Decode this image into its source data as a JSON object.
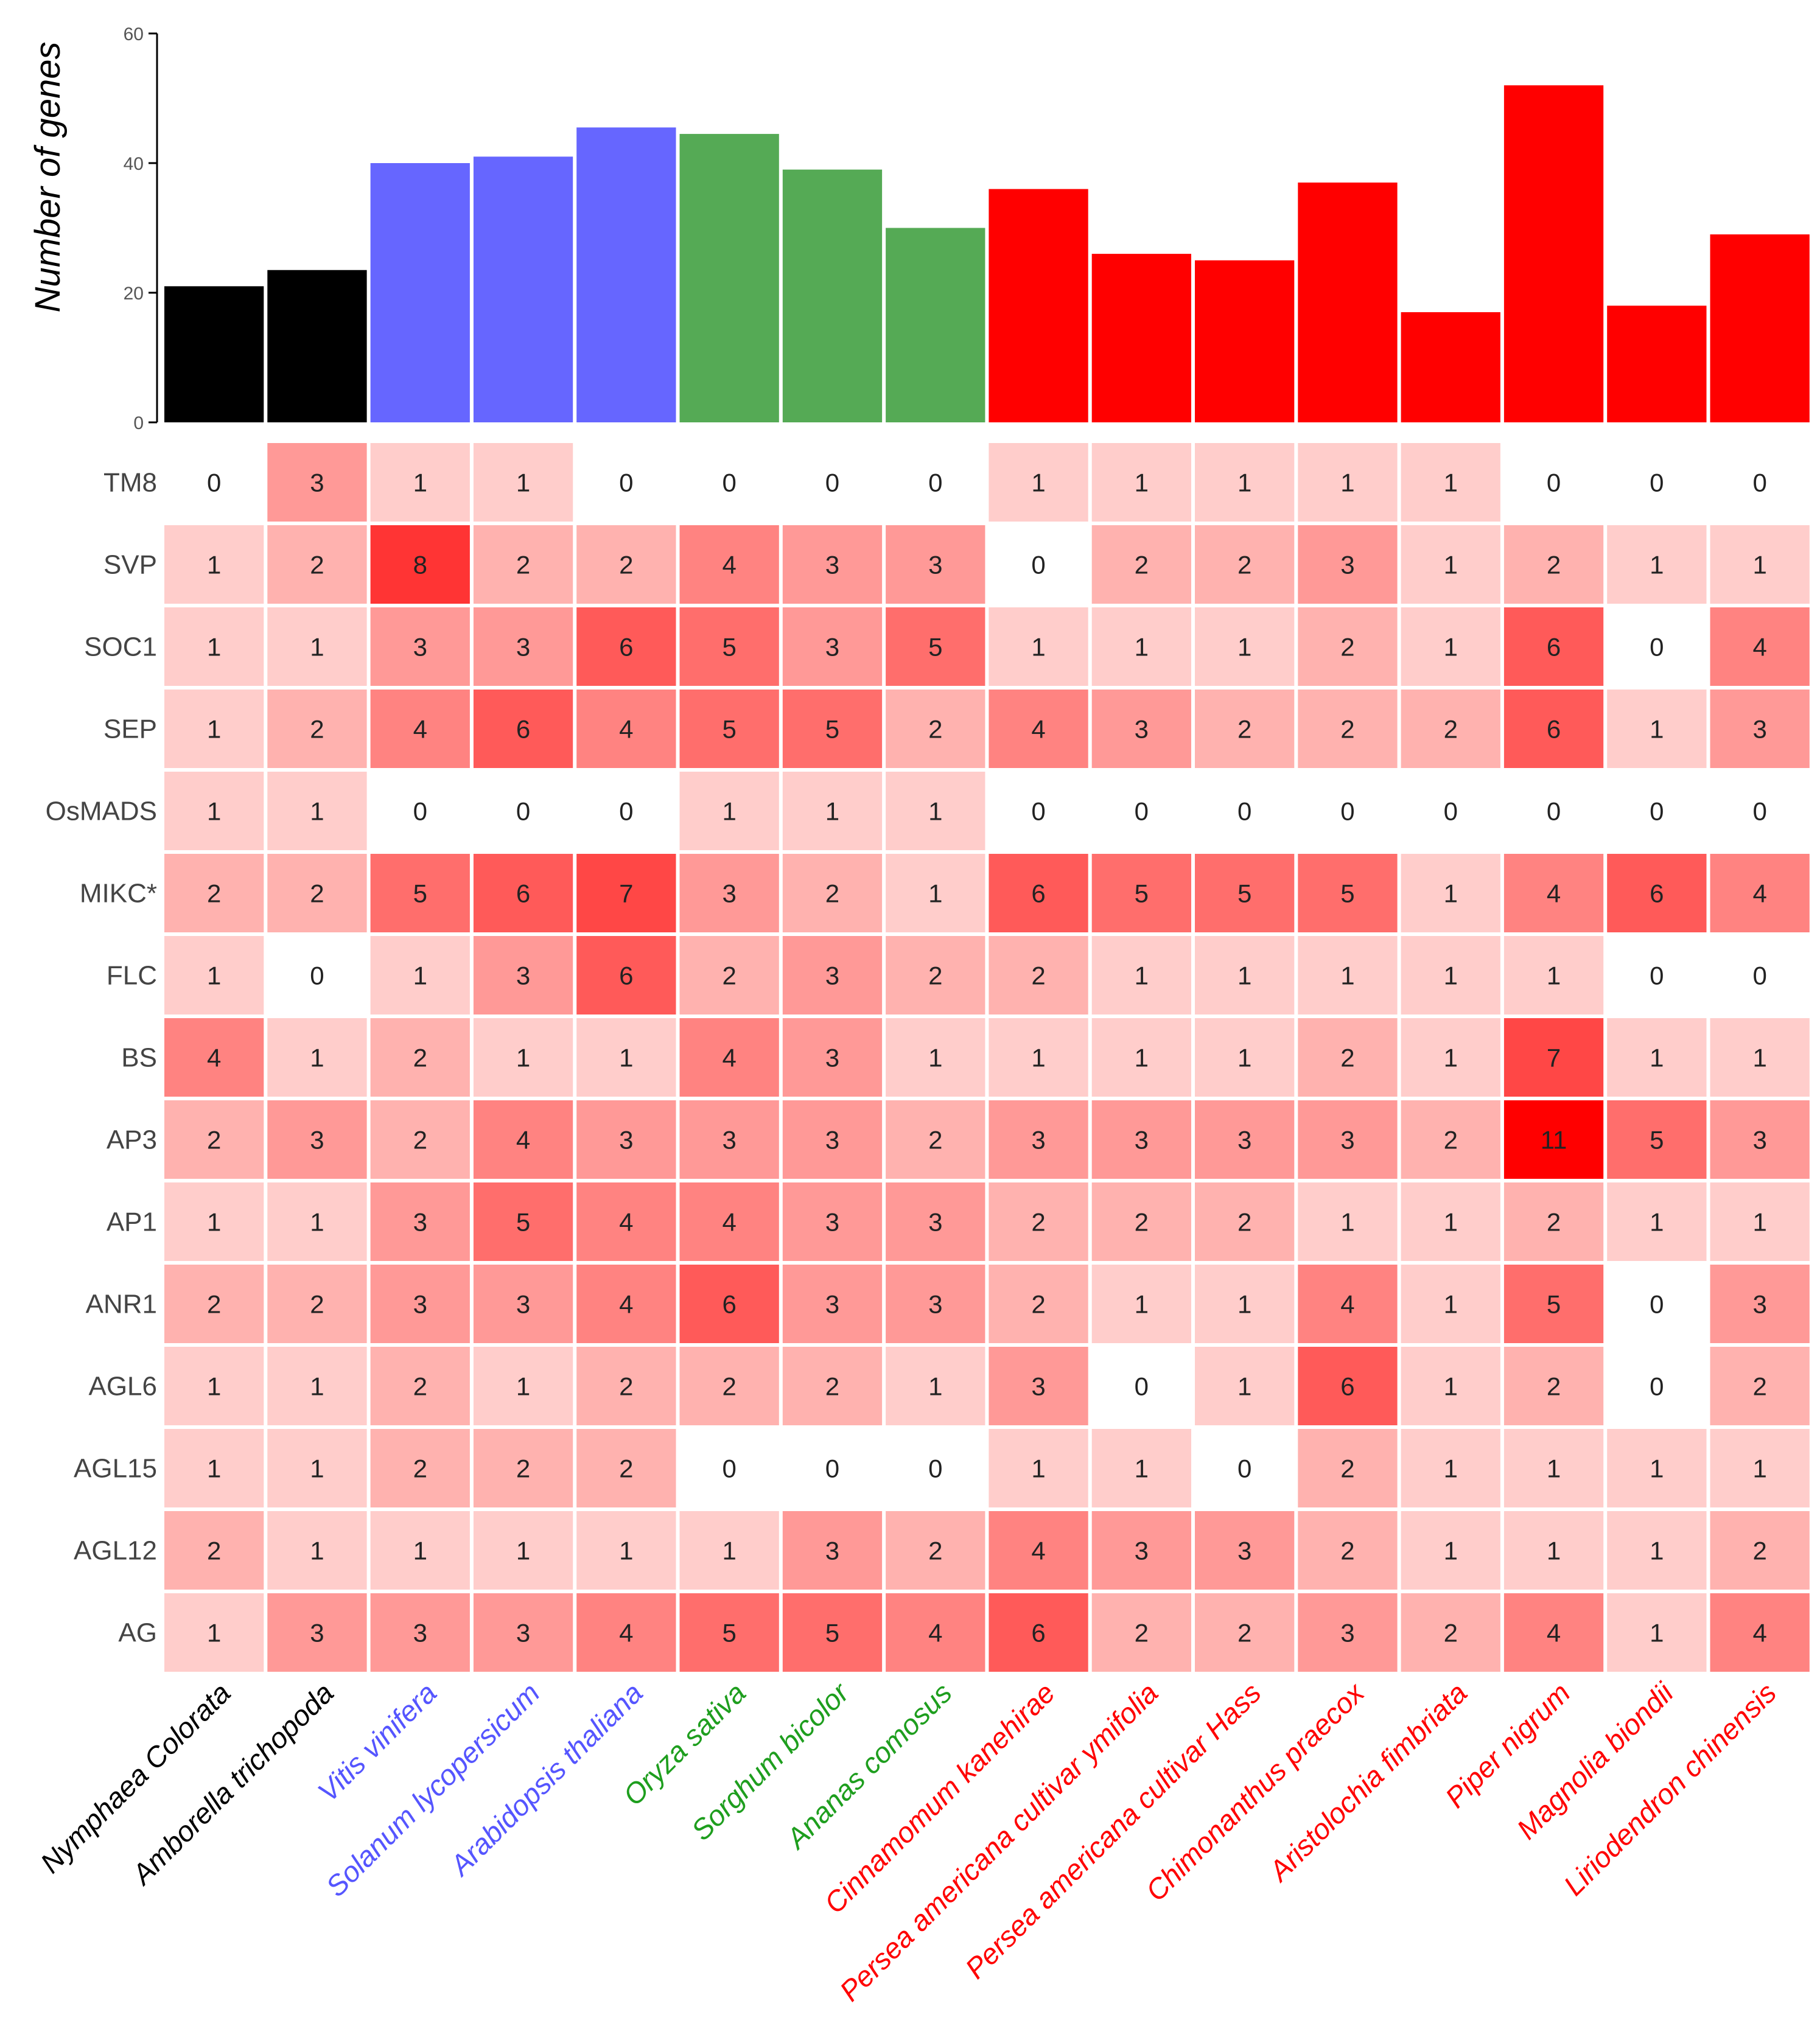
{
  "chart_data": {
    "type": "bar+heatmap",
    "bar_chart": {
      "type": "bar",
      "ylabel": "Number of genes",
      "ylim": [
        0,
        60
      ],
      "yticks": [
        "0",
        "20",
        "40",
        "60"
      ],
      "values": [
        21,
        23.5,
        40,
        41,
        45.5,
        44.5,
        39,
        30,
        36,
        26,
        25,
        37,
        17,
        52,
        18,
        29
      ]
    },
    "heatmap": {
      "type": "heatmap",
      "rows": [
        "TM8",
        "SVP",
        "SOC1",
        "SEP",
        "OsMADS",
        "MIKC*",
        "FLC",
        "BS",
        "AP3",
        "AP1",
        "ANR1",
        "AGL6",
        "AGL15",
        "AGL12",
        "AG"
      ],
      "values": [
        [
          0,
          3,
          1,
          1,
          0,
          0,
          0,
          0,
          1,
          1,
          1,
          1,
          1,
          0,
          0,
          0
        ],
        [
          1,
          2,
          8,
          2,
          2,
          4,
          3,
          3,
          0,
          2,
          2,
          3,
          1,
          2,
          1,
          1
        ],
        [
          1,
          1,
          3,
          3,
          6,
          5,
          3,
          5,
          1,
          1,
          1,
          2,
          1,
          6,
          0,
          4
        ],
        [
          1,
          2,
          4,
          6,
          4,
          5,
          5,
          2,
          4,
          3,
          2,
          2,
          2,
          6,
          1,
          3
        ],
        [
          1,
          1,
          0,
          0,
          0,
          1,
          1,
          1,
          0,
          0,
          0,
          0,
          0,
          0,
          0,
          0
        ],
        [
          2,
          2,
          5,
          6,
          7,
          3,
          2,
          1,
          6,
          5,
          5,
          5,
          1,
          4,
          6,
          4
        ],
        [
          1,
          0,
          1,
          3,
          6,
          2,
          3,
          2,
          2,
          1,
          1,
          1,
          1,
          1,
          0,
          0
        ],
        [
          4,
          1,
          2,
          1,
          1,
          4,
          3,
          1,
          1,
          1,
          1,
          2,
          1,
          7,
          1,
          1
        ],
        [
          2,
          3,
          2,
          4,
          3,
          3,
          3,
          2,
          3,
          3,
          3,
          3,
          2,
          11,
          5,
          3
        ],
        [
          1,
          1,
          3,
          5,
          4,
          4,
          3,
          3,
          2,
          2,
          2,
          1,
          1,
          2,
          1,
          1
        ],
        [
          2,
          2,
          3,
          3,
          4,
          6,
          3,
          3,
          2,
          1,
          1,
          4,
          1,
          5,
          0,
          3
        ],
        [
          1,
          1,
          2,
          1,
          2,
          2,
          2,
          1,
          3,
          0,
          1,
          6,
          1,
          2,
          0,
          2
        ],
        [
          1,
          1,
          2,
          2,
          2,
          0,
          0,
          0,
          1,
          1,
          0,
          2,
          1,
          1,
          1,
          1
        ],
        [
          2,
          1,
          1,
          1,
          1,
          1,
          3,
          2,
          4,
          3,
          3,
          2,
          1,
          1,
          1,
          2
        ],
        [
          1,
          3,
          3,
          3,
          4,
          5,
          5,
          4,
          6,
          2,
          2,
          3,
          2,
          4,
          1,
          4
        ]
      ],
      "color_low": "#ffffff",
      "color_high": "#ff0000",
      "max_value": 11
    },
    "species": [
      {
        "name": "Nymphaea Colorata",
        "group": "basal"
      },
      {
        "name": "Amborella trichopoda",
        "group": "basal"
      },
      {
        "name": "Vitis vinifera",
        "group": "eudicot"
      },
      {
        "name": "Solanum lycopersicum",
        "group": "eudicot"
      },
      {
        "name": "Arabidopsis thaliana",
        "group": "eudicot"
      },
      {
        "name": "Oryza sativa",
        "group": "monocot"
      },
      {
        "name": "Sorghum bicolor",
        "group": "monocot"
      },
      {
        "name": "Ananas comosus",
        "group": "monocot"
      },
      {
        "name": "Cinnamomum kanehirae",
        "group": "magnoliid"
      },
      {
        "name": "Persea americana cultivar ymifolia",
        "group": "magnoliid"
      },
      {
        "name": "Persea americana cultivar Hass",
        "group": "magnoliid"
      },
      {
        "name": "Chimonanthus praecox",
        "group": "magnoliid"
      },
      {
        "name": "Aristolochia fimbriata",
        "group": "magnoliid"
      },
      {
        "name": "Piper nigrum",
        "group": "magnoliid"
      },
      {
        "name": "Magnolia biondii",
        "group": "magnoliid"
      },
      {
        "name": "Liriodendron chinensis",
        "group": "magnoliid"
      }
    ],
    "group_colors": {
      "basal": {
        "bar": "#000000",
        "label": "#000000"
      },
      "eudicot": {
        "bar": "#6666ff",
        "label": "#5555ff"
      },
      "monocot": {
        "bar": "#55aa55",
        "label": "#1e9e1e"
      },
      "magnoliid": {
        "bar": "#ff0000",
        "label": "#ff0000"
      }
    }
  }
}
